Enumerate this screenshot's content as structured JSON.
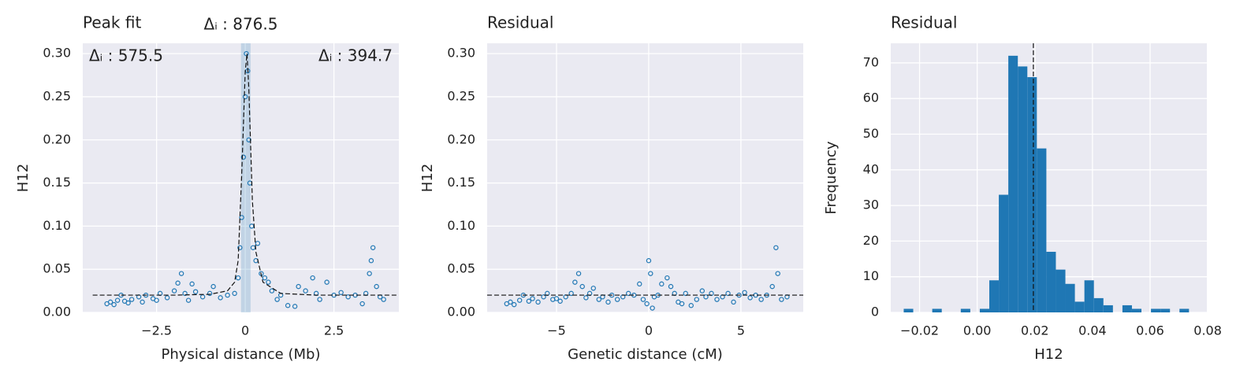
{
  "chart_data": [
    {
      "type": "scatter",
      "title": "Peak fit",
      "x_label": "Physical distance (Mb)",
      "y_label": "H12",
      "xlim": [
        -4.58,
        4.33
      ],
      "ylim": [
        0,
        0.312
      ],
      "xticks": [
        {
          "value": -2.5,
          "label": "−2.5"
        },
        0,
        2.5
      ],
      "yticks": [
        {
          "value": 0,
          "label": "0.00"
        },
        0.05,
        {
          "value": 0.1,
          "label": "0.10"
        },
        0.15,
        {
          "value": 0.2,
          "label": "0.20"
        },
        0.25,
        {
          "value": 0.3,
          "label": "0.30"
        }
      ],
      "grid": true,
      "color": "#1f77b4",
      "annotations": [
        "Δᵢ : 575.5",
        "Δᵢ : 876.5",
        "Δᵢ : 394.7"
      ],
      "span": [
        -0.12,
        0.15
      ],
      "fit": {
        "x": [
          -4.3,
          -2,
          -1,
          -0.5,
          -0.3,
          -0.2,
          -0.1,
          0,
          0.05,
          0.1,
          0.2,
          0.3,
          0.5,
          1,
          2,
          4.3
        ],
        "y": [
          0.02,
          0.02,
          0.021,
          0.025,
          0.035,
          0.06,
          0.16,
          0.28,
          0.3,
          0.26,
          0.13,
          0.07,
          0.035,
          0.022,
          0.02,
          0.02
        ]
      },
      "x": [
        -3.9,
        -3.8,
        -3.7,
        -3.6,
        -3.5,
        -3.4,
        -3.3,
        -3.2,
        -3.0,
        -2.9,
        -2.8,
        -2.6,
        -2.5,
        -2.4,
        -2.2,
        -2.0,
        -1.9,
        -1.8,
        -1.7,
        -1.6,
        -1.5,
        -1.4,
        -1.2,
        -1.0,
        -0.9,
        -0.7,
        -0.5,
        -0.3,
        -0.2,
        -0.15,
        -0.1,
        -0.05,
        0,
        0.03,
        0.07,
        0.1,
        0.13,
        0.18,
        0.22,
        0.3,
        0.35,
        0.45,
        0.55,
        0.65,
        0.75,
        0.9,
        1.0,
        1.2,
        1.4,
        1.5,
        1.7,
        1.9,
        2.0,
        2.1,
        2.3,
        2.5,
        2.7,
        2.9,
        3.1,
        3.3,
        3.4,
        3.5,
        3.55,
        3.6,
        3.7,
        3.8,
        3.9
      ],
      "values": [
        0.01,
        0.012,
        0.009,
        0.014,
        0.02,
        0.013,
        0.011,
        0.015,
        0.018,
        0.012,
        0.02,
        0.016,
        0.014,
        0.022,
        0.017,
        0.025,
        0.034,
        0.045,
        0.022,
        0.014,
        0.033,
        0.024,
        0.018,
        0.022,
        0.03,
        0.017,
        0.02,
        0.022,
        0.04,
        0.075,
        0.11,
        0.18,
        0.25,
        0.3,
        0.28,
        0.2,
        0.15,
        0.1,
        0.075,
        0.06,
        0.08,
        0.045,
        0.04,
        0.035,
        0.025,
        0.015,
        0.02,
        0.008,
        0.007,
        0.03,
        0.025,
        0.04,
        0.022,
        0.015,
        0.035,
        0.02,
        0.023,
        0.018,
        0.02,
        0.01,
        0.022,
        0.045,
        0.06,
        0.075,
        0.03,
        0.018,
        0.015
      ]
    },
    {
      "type": "scatter",
      "title": "Residual",
      "x_label": "Genetic distance (cM)",
      "y_label": "H12",
      "xlim": [
        -8.76,
        8.38
      ],
      "ylim": [
        0,
        0.312
      ],
      "xticks": [
        {
          "value": -5,
          "label": "−5"
        },
        0,
        5
      ],
      "yticks": [
        {
          "value": 0,
          "label": "0.00"
        },
        0.05,
        {
          "value": 0.1,
          "label": "0.10"
        },
        0.15,
        {
          "value": 0.2,
          "label": "0.20"
        },
        0.25,
        {
          "value": 0.3,
          "label": "0.30"
        }
      ],
      "grid": true,
      "color": "#1f77b4",
      "hline": 0.02,
      "x": [
        -7.7,
        -7.5,
        -7.3,
        -7.0,
        -6.8,
        -6.5,
        -6.3,
        -6.0,
        -5.7,
        -5.5,
        -5.2,
        -5.0,
        -4.8,
        -4.5,
        -4.2,
        -4.0,
        -3.8,
        -3.6,
        -3.4,
        -3.2,
        -3.0,
        -2.7,
        -2.5,
        -2.2,
        -2.0,
        -1.7,
        -1.4,
        -1.1,
        -0.8,
        -0.5,
        -0.3,
        -0.1,
        0,
        0.1,
        0.2,
        0.3,
        0.5,
        0.7,
        1.0,
        1.2,
        1.4,
        1.6,
        1.8,
        2.0,
        2.3,
        2.6,
        2.9,
        3.1,
        3.4,
        3.7,
        4.0,
        4.3,
        4.6,
        4.9,
        5.2,
        5.5,
        5.8,
        6.1,
        6.4,
        6.7,
        6.9,
        7.0,
        7.2,
        7.5
      ],
      "values": [
        0.01,
        0.012,
        0.009,
        0.014,
        0.02,
        0.013,
        0.016,
        0.012,
        0.018,
        0.022,
        0.015,
        0.016,
        0.013,
        0.018,
        0.022,
        0.035,
        0.045,
        0.03,
        0.017,
        0.022,
        0.028,
        0.015,
        0.018,
        0.012,
        0.02,
        0.015,
        0.018,
        0.022,
        0.02,
        0.033,
        0.015,
        0.01,
        0.06,
        0.045,
        0.005,
        0.018,
        0.02,
        0.033,
        0.04,
        0.03,
        0.022,
        0.012,
        0.01,
        0.022,
        0.008,
        0.015,
        0.025,
        0.018,
        0.022,
        0.015,
        0.018,
        0.022,
        0.012,
        0.02,
        0.023,
        0.017,
        0.02,
        0.015,
        0.02,
        0.03,
        0.075,
        0.045,
        0.015,
        0.018
      ]
    },
    {
      "type": "histogram",
      "title": "Residual",
      "x_label": "H12",
      "y_label": "Frequency",
      "xlim": [
        -0.03,
        0.0797
      ],
      "ylim": [
        0,
        75.5
      ],
      "xticks": [
        {
          "value": -0.02,
          "label": "−0.02"
        },
        {
          "value": 0,
          "label": "0.00"
        },
        0.02,
        0.04,
        0.06,
        0.08
      ],
      "yticks": [
        0,
        10,
        20,
        30,
        40,
        50,
        60,
        70
      ],
      "grid": true,
      "color": "#1f77b4",
      "vline": 0.0195,
      "bins": [
        -0.0255,
        -0.0222,
        -0.0189,
        -0.0156,
        -0.0123,
        -0.009,
        -0.0057,
        -0.0024,
        0.0009,
        0.0042,
        0.0075,
        0.0108,
        0.0141,
        0.0174,
        0.0207,
        0.024,
        0.0273,
        0.0306,
        0.0339,
        0.0372,
        0.0405,
        0.0438,
        0.0471,
        0.0504,
        0.0537,
        0.057,
        0.0603,
        0.0636,
        0.0669,
        0.0702,
        0.0735
      ],
      "values": [
        1,
        0,
        0,
        1,
        0,
        0,
        1,
        0,
        1,
        9,
        33,
        72,
        69,
        66,
        46,
        17,
        12,
        8,
        3,
        9,
        4,
        2,
        0,
        2,
        1,
        0,
        1,
        1,
        0,
        1
      ]
    }
  ]
}
